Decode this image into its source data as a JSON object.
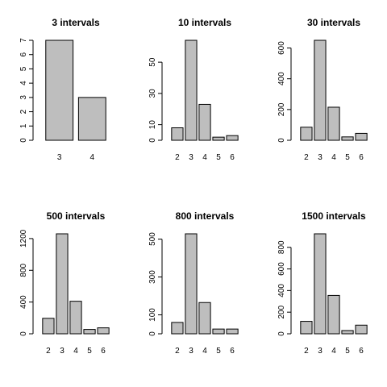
{
  "chart_data": [
    {
      "type": "bar",
      "title": "3 intervals",
      "categories": [
        "3",
        "4"
      ],
      "values": [
        7,
        3
      ],
      "ylim": [
        0,
        7
      ],
      "yticks": [
        0,
        1,
        2,
        3,
        4,
        5,
        6,
        7
      ],
      "xlabel": "",
      "ylabel": "",
      "grid": false,
      "colors": {
        "bar_fill": "#bebebe",
        "bar_stroke": "#000000"
      }
    },
    {
      "type": "bar",
      "title": "10 intervals",
      "categories": [
        "2",
        "3",
        "4",
        "5",
        "6"
      ],
      "values": [
        8,
        64,
        23,
        2,
        3
      ],
      "ylim": [
        0,
        64
      ],
      "yticks": [
        0,
        10,
        30,
        50
      ],
      "xlabel": "",
      "ylabel": "",
      "grid": false,
      "colors": {
        "bar_fill": "#bebebe",
        "bar_stroke": "#000000"
      }
    },
    {
      "type": "bar",
      "title": "30 intervals",
      "categories": [
        "2",
        "3",
        "4",
        "5",
        "6"
      ],
      "values": [
        85,
        650,
        215,
        22,
        45
      ],
      "ylim": [
        0,
        650
      ],
      "yticks": [
        0,
        200,
        400,
        600
      ],
      "xlabel": "",
      "ylabel": "",
      "grid": false,
      "colors": {
        "bar_fill": "#bebebe",
        "bar_stroke": "#000000"
      }
    },
    {
      "type": "bar",
      "title": "500 intervals",
      "categories": [
        "2",
        "3",
        "4",
        "5",
        "6"
      ],
      "values": [
        195,
        1260,
        410,
        55,
        75
      ],
      "ylim": [
        0,
        1260
      ],
      "yticks": [
        0,
        400,
        800,
        1200
      ],
      "xlabel": "",
      "ylabel": "",
      "grid": false,
      "colors": {
        "bar_fill": "#bebebe",
        "bar_stroke": "#000000"
      }
    },
    {
      "type": "bar",
      "title": "800 intervals",
      "categories": [
        "2",
        "3",
        "4",
        "5",
        "6"
      ],
      "values": [
        60,
        528,
        165,
        25,
        25
      ],
      "ylim": [
        0,
        528
      ],
      "yticks": [
        0,
        100,
        300,
        500
      ],
      "xlabel": "",
      "ylabel": "",
      "grid": false,
      "colors": {
        "bar_fill": "#bebebe",
        "bar_stroke": "#000000"
      }
    },
    {
      "type": "bar",
      "title": "1500 intervals",
      "categories": [
        "2",
        "3",
        "4",
        "5",
        "6"
      ],
      "values": [
        115,
        925,
        355,
        30,
        80
      ],
      "ylim": [
        0,
        925
      ],
      "yticks": [
        0,
        200,
        400,
        600,
        800
      ],
      "xlabel": "",
      "ylabel": "",
      "grid": false,
      "colors": {
        "bar_fill": "#bebebe",
        "bar_stroke": "#000000"
      }
    }
  ]
}
